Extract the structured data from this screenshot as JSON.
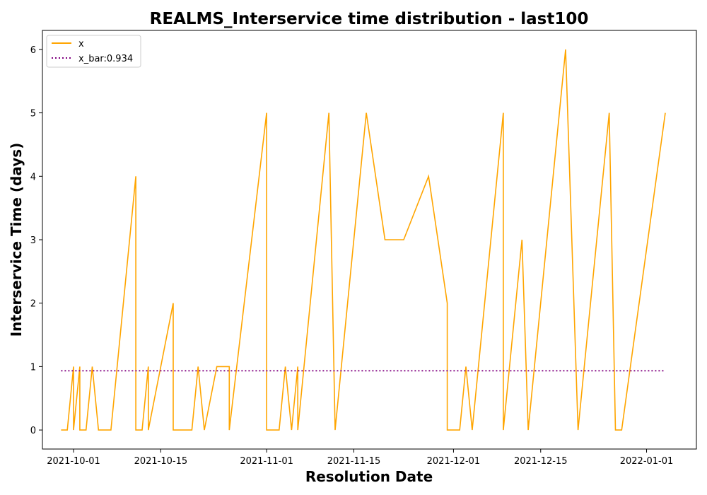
{
  "chart_data": {
    "type": "line",
    "title": "REALMS_Interservice time distribution - last100",
    "xlabel": "Resolution Date",
    "ylabel": "Interservice Time (days)",
    "x_type": "date",
    "xlim": [
      "2021-09-26",
      "2022-01-09"
    ],
    "ylim": [
      -0.3,
      6.3
    ],
    "xticks": [
      "2021-10-01",
      "2021-10-15",
      "2021-11-01",
      "2021-11-15",
      "2021-12-01",
      "2021-12-15",
      "2022-01-01"
    ],
    "yticks": [
      0,
      1,
      2,
      3,
      4,
      5,
      6
    ],
    "grid": false,
    "legend": "top-left",
    "series": [
      {
        "name": "x",
        "color": "#FFA500",
        "style": "solid",
        "points": [
          [
            "2021-09-29",
            0
          ],
          [
            "2021-09-30",
            0
          ],
          [
            "2021-10-01",
            1
          ],
          [
            "2021-10-01",
            0
          ],
          [
            "2021-10-02",
            1
          ],
          [
            "2021-10-02",
            0
          ],
          [
            "2021-10-03",
            0
          ],
          [
            "2021-10-04",
            1
          ],
          [
            "2021-10-05",
            0
          ],
          [
            "2021-10-06",
            0
          ],
          [
            "2021-10-07",
            0
          ],
          [
            "2021-10-11",
            4
          ],
          [
            "2021-10-11",
            0
          ],
          [
            "2021-10-12",
            0
          ],
          [
            "2021-10-13",
            1
          ],
          [
            "2021-10-13",
            0
          ],
          [
            "2021-10-15",
            1
          ],
          [
            "2021-10-17",
            2
          ],
          [
            "2021-10-17",
            0
          ],
          [
            "2021-10-20",
            0
          ],
          [
            "2021-10-21",
            1
          ],
          [
            "2021-10-22",
            0
          ],
          [
            "2021-10-24",
            1
          ],
          [
            "2021-10-26",
            1
          ],
          [
            "2021-10-26",
            0
          ],
          [
            "2021-11-01",
            5
          ],
          [
            "2021-11-01",
            0
          ],
          [
            "2021-11-03",
            0
          ],
          [
            "2021-11-04",
            1
          ],
          [
            "2021-11-05",
            0
          ],
          [
            "2021-11-06",
            1
          ],
          [
            "2021-11-06",
            0
          ],
          [
            "2021-11-11",
            5
          ],
          [
            "2021-11-12",
            0
          ],
          [
            "2021-11-17",
            5
          ],
          [
            "2021-11-20",
            3
          ],
          [
            "2021-11-23",
            3
          ],
          [
            "2021-11-27",
            4
          ],
          [
            "2021-11-30",
            2
          ],
          [
            "2021-11-30",
            0
          ],
          [
            "2021-12-02",
            0
          ],
          [
            "2021-12-03",
            1
          ],
          [
            "2021-12-04",
            0
          ],
          [
            "2021-12-09",
            5
          ],
          [
            "2021-12-09",
            0
          ],
          [
            "2021-12-12",
            3
          ],
          [
            "2021-12-13",
            0
          ],
          [
            "2021-12-19",
            6
          ],
          [
            "2021-12-21",
            0
          ],
          [
            "2021-12-21",
            0
          ],
          [
            "2021-12-26",
            5
          ],
          [
            "2021-12-27",
            0
          ],
          [
            "2021-12-28",
            0
          ],
          [
            "2022-01-04",
            5
          ]
        ]
      },
      {
        "name": "x_bar:0.934",
        "color": "#800080",
        "style": "dotted",
        "points": [
          [
            "2021-09-29",
            0.934
          ],
          [
            "2022-01-04",
            0.934
          ]
        ]
      }
    ]
  }
}
